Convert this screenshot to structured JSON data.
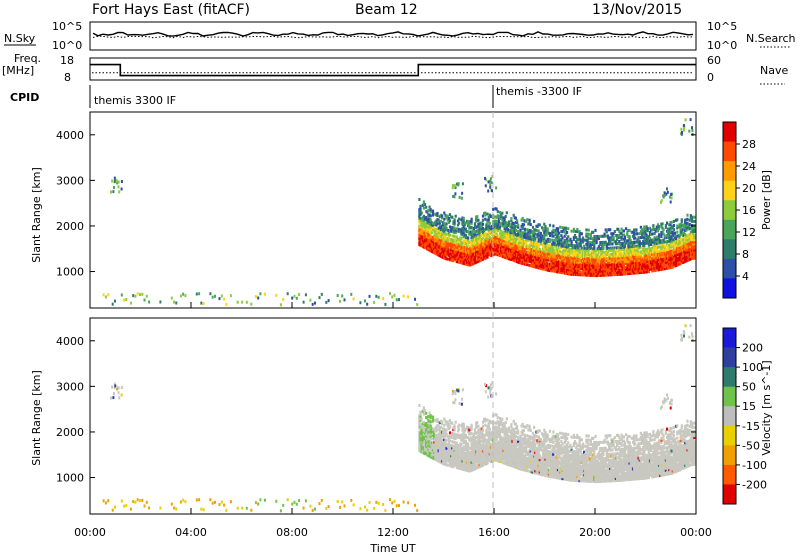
{
  "header": {
    "title": "Fort Hays East (fitACF)",
    "beam": "Beam 12",
    "date": "13/Nov/2015"
  },
  "top_panels": {
    "nsky_label": "N.Sky",
    "nsky_ticks": [
      "10^5",
      "10^0"
    ],
    "nsearch_label": "N.Search",
    "nsearch_ticks": [
      "10^5",
      "10^0"
    ],
    "freq_label": "Freq.",
    "freq_unit": "[MHz]",
    "freq_ticks": [
      "18",
      "8"
    ],
    "nave_label": "Nave",
    "nave_ticks": [
      "60",
      "0"
    ],
    "cpid_label": "CPID",
    "cpid_segments": [
      "themis 3300 IF",
      "themis -3300 IF"
    ]
  },
  "colors": {
    "power_scale": [
      "#1010e0",
      "#2e4fa8",
      "#2e7d6b",
      "#4aa55a",
      "#8ecb3c",
      "#ffd21a",
      "#ff9a00",
      "#ff4a00",
      "#e00000"
    ],
    "velocity_scale": [
      "#1a1ad8",
      "#2e3fa0",
      "#2e7a6c",
      "#6fc24a",
      "#bdbdbd",
      "#e8d000",
      "#f0a000",
      "#ff5a00",
      "#e00000"
    ],
    "ground_scatter": "#c8c8c0"
  },
  "chart_data": [
    {
      "type": "line",
      "name": "sky-noise",
      "x": [
        "00:00",
        "04:00",
        "08:00",
        "12:00",
        "16:00",
        "20:00",
        "00:00"
      ],
      "xlim_hours": [
        0,
        24
      ],
      "ylim": [
        "10^0",
        "10^5"
      ],
      "y_description_solid": "N.Sky near 10^3",
      "y_description_dotted": "N.Search near 10^2"
    },
    {
      "type": "line",
      "name": "frequency-nave",
      "xlim_hours": [
        0,
        24
      ],
      "freq_steps": [
        {
          "t0": 0.0,
          "t1": 1.2,
          "value": 15
        },
        {
          "t0": 1.2,
          "t1": 13.0,
          "value": 10
        },
        {
          "t0": 13.0,
          "t1": 24.0,
          "value": 15
        }
      ],
      "freq_ylim": [
        8,
        18
      ],
      "nave_level": 20,
      "nave_ylim": [
        0,
        60
      ]
    },
    {
      "type": "heatmap",
      "name": "power",
      "ylabel": "Slant Range [km]",
      "yticks": [
        1000,
        2000,
        3000,
        4000
      ],
      "ylim": [
        200,
        4500
      ],
      "xlim_hours": [
        0,
        24
      ],
      "cbar_label": "Power [dB]",
      "cbar_ticks": [
        4,
        8,
        12,
        16,
        20,
        24,
        28
      ],
      "cbar_lim": [
        0,
        32
      ],
      "main_band_center_km": [
        [
          13.0,
          1800
        ],
        [
          14.0,
          1500
        ],
        [
          15.0,
          1350
        ],
        [
          16.0,
          1600
        ],
        [
          17.0,
          1400
        ],
        [
          18.0,
          1250
        ],
        [
          19.0,
          1150
        ],
        [
          20.0,
          1120
        ],
        [
          21.0,
          1150
        ],
        [
          22.0,
          1200
        ],
        [
          23.0,
          1300
        ],
        [
          23.8,
          1500
        ]
      ],
      "secondary_echoes": [
        {
          "t": 1.0,
          "km": 2950
        },
        {
          "t": 14.5,
          "km": 2800
        },
        {
          "t": 15.8,
          "km": 2950
        },
        {
          "t": 22.8,
          "km": 2700
        },
        {
          "t": 23.6,
          "km": 4200
        }
      ],
      "near_range_km": 300,
      "near_range_span_hours": [
        0.5,
        13.0
      ]
    },
    {
      "type": "heatmap",
      "name": "velocity",
      "ylabel": "Slant Range [km]",
      "xlabel": "Time UT",
      "yticks": [
        1000,
        2000,
        3000,
        4000
      ],
      "ylim": [
        200,
        4500
      ],
      "xticks": [
        "00:00",
        "04:00",
        "08:00",
        "12:00",
        "16:00",
        "20:00",
        "00:00"
      ],
      "xlim_hours": [
        0,
        24
      ],
      "cbar_label": "Velocity [m s^-1]",
      "cbar_ticks": [
        200,
        100,
        50,
        15,
        -15,
        -50,
        -100,
        -200
      ],
      "cbar_lim": [
        -250,
        250
      ],
      "ground_scatter_band_km": [
        [
          13.0,
          1800
        ],
        [
          14.0,
          1500
        ],
        [
          15.0,
          1350
        ],
        [
          16.0,
          1600
        ],
        [
          17.0,
          1400
        ],
        [
          18.0,
          1250
        ],
        [
          19.0,
          1150
        ],
        [
          20.0,
          1120
        ],
        [
          21.0,
          1150
        ],
        [
          22.0,
          1200
        ],
        [
          23.0,
          1300
        ],
        [
          23.8,
          1500
        ]
      ]
    }
  ]
}
